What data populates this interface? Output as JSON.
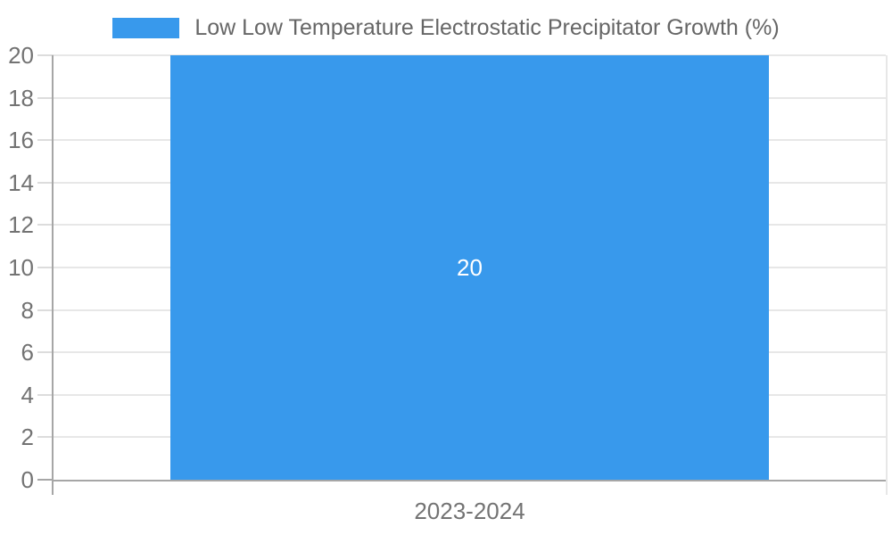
{
  "legend": {
    "label": "Low Low Temperature Electrostatic Precipitator Growth (%)"
  },
  "chart_data": {
    "type": "bar",
    "title": "Low Low Temperature Electrostatic Precipitator Growth (%)",
    "categories": [
      "2023-2024"
    ],
    "series": [
      {
        "name": "Low Low Temperature Electrostatic Precipitator Growth (%)",
        "values": [
          20
        ],
        "color": "#3899ec"
      }
    ],
    "bar_value_labels": [
      "20"
    ],
    "xlabel": "",
    "ylabel": "",
    "ylim": [
      0,
      20
    ],
    "yticks": [
      0,
      2,
      4,
      6,
      8,
      10,
      12,
      14,
      16,
      18,
      20
    ],
    "grid": true,
    "legend_position": "top",
    "bar_fraction": 0.72
  },
  "colors": {
    "bar": "#3899ec",
    "gridline": "#e7e7e7",
    "tick": "#dcdcdc",
    "axis": "#a6a6a6",
    "tick_label": "#737373",
    "legend_text": "#666666",
    "bar_value_label": "#ffffff",
    "background": "#ffffff"
  }
}
